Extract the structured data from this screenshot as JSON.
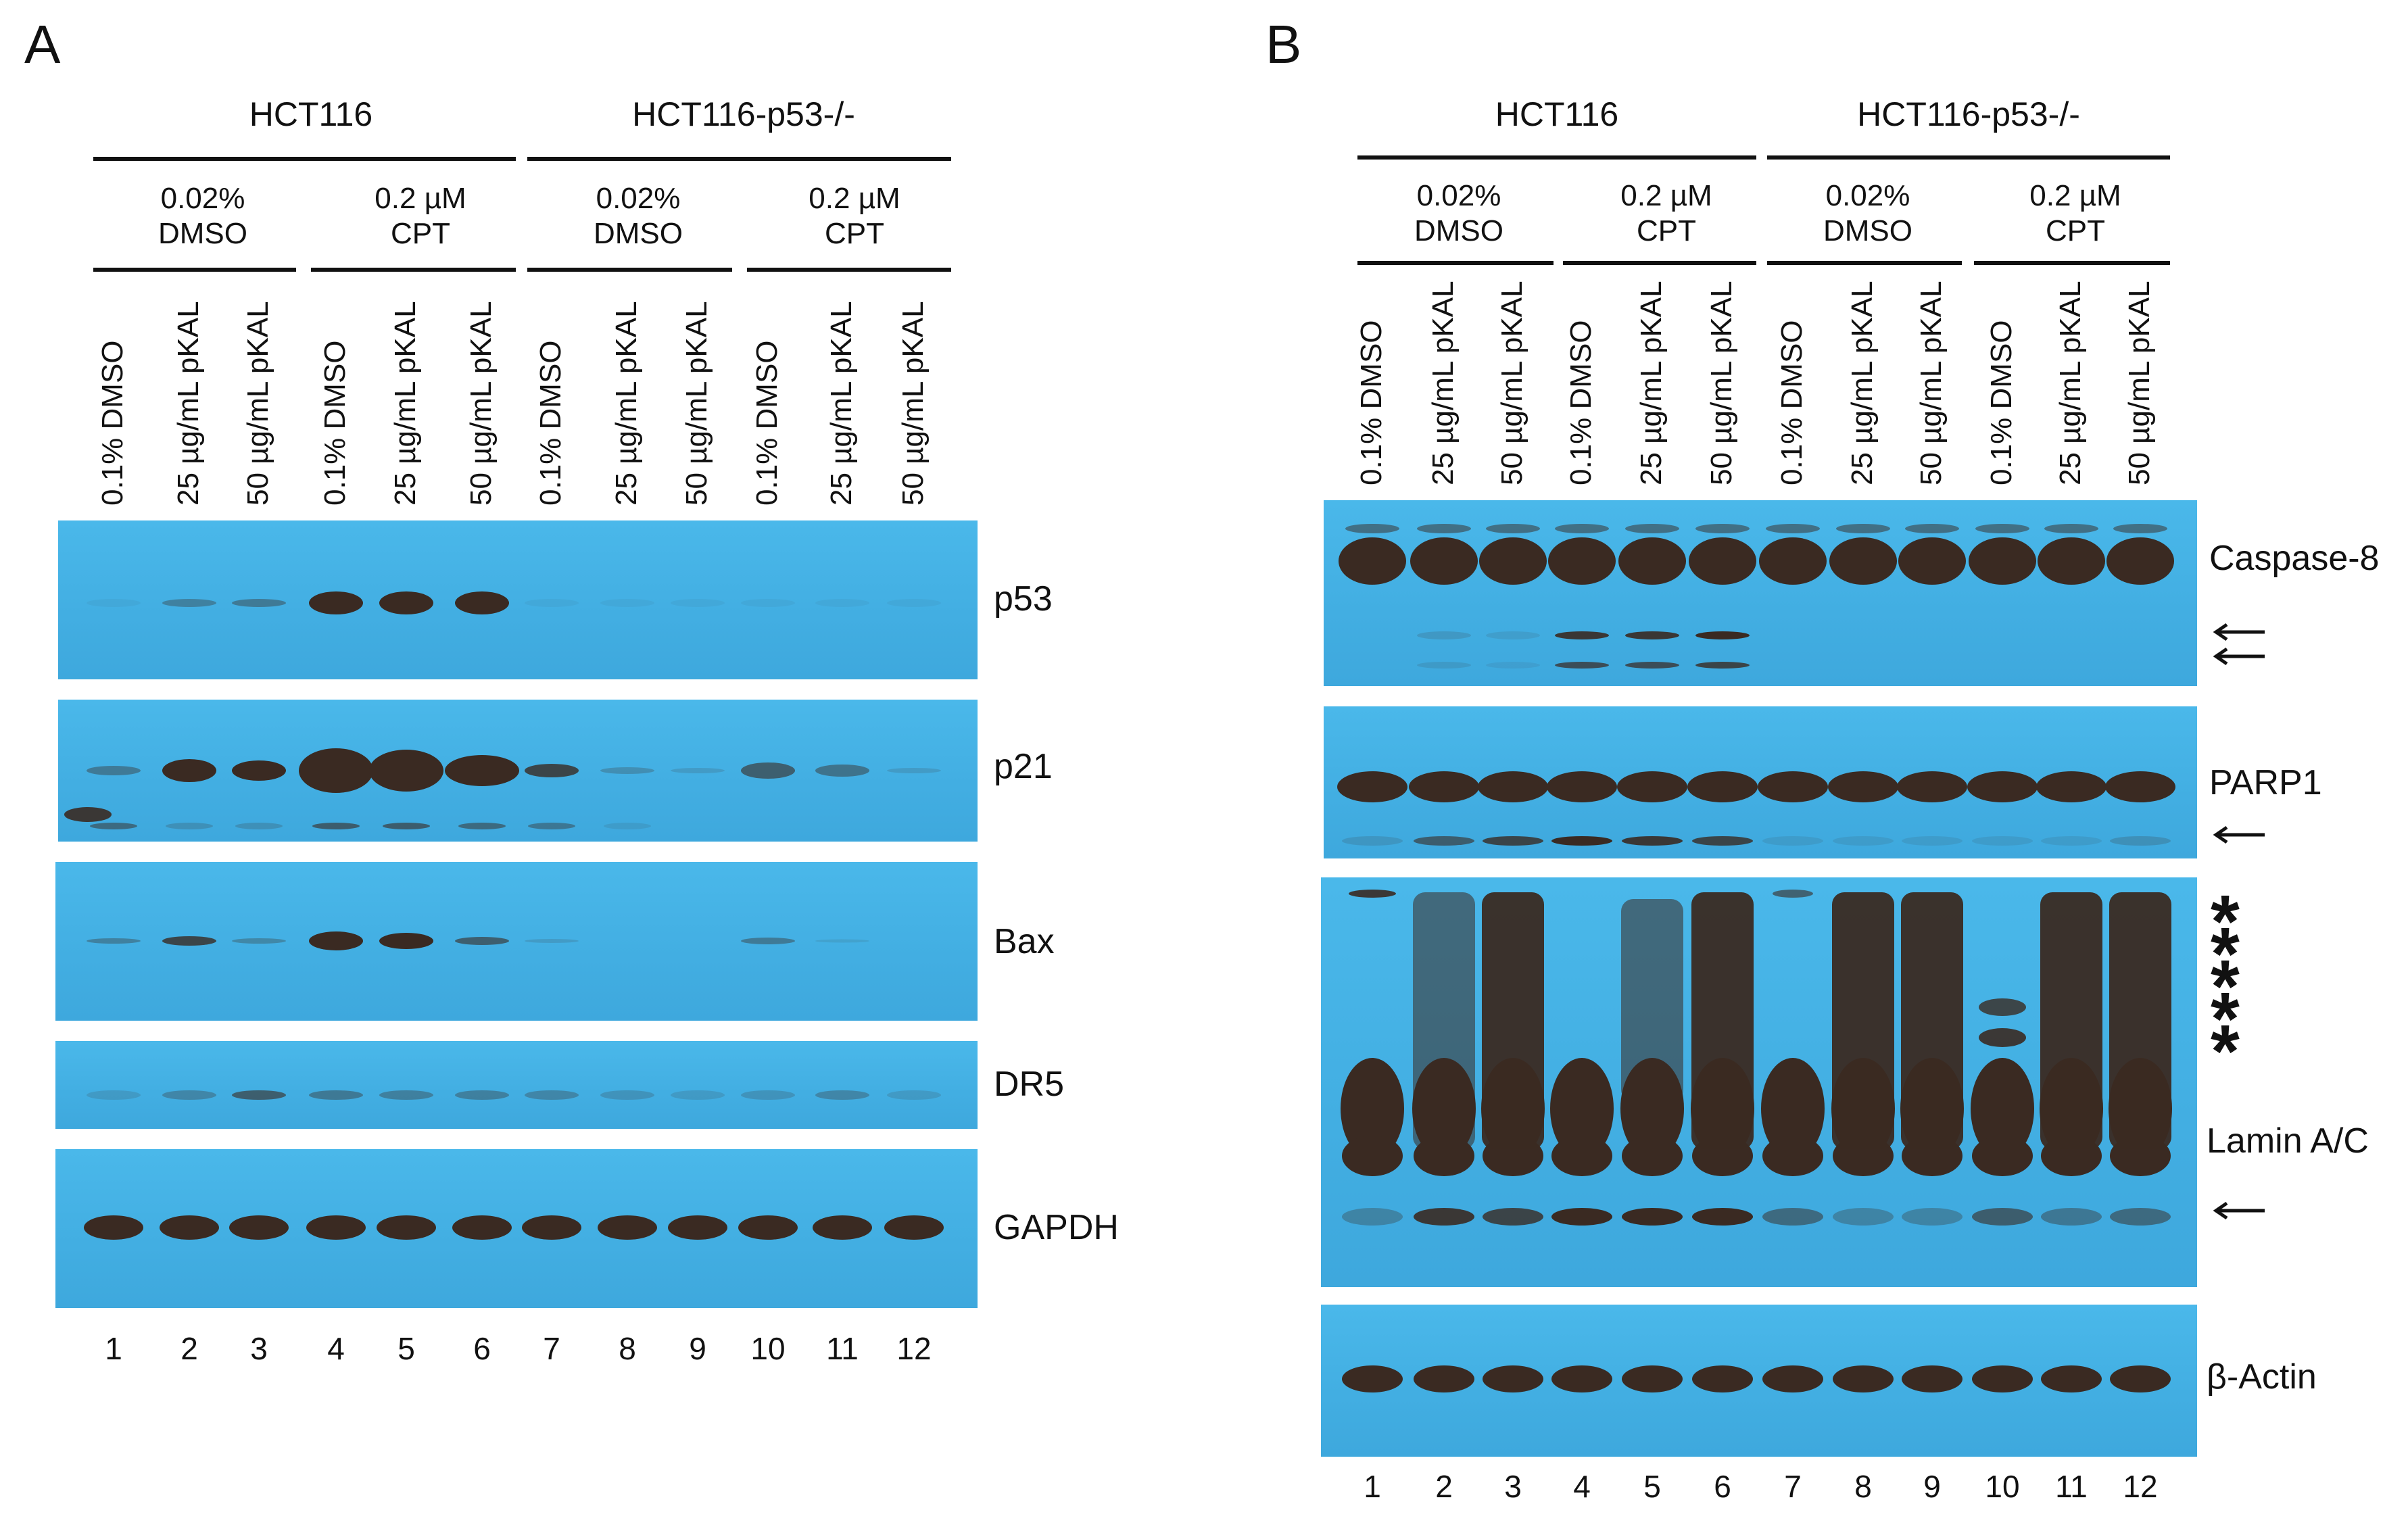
{
  "panels": [
    {
      "letter": "A",
      "cells": [
        "HCT116",
        "HCT116-p53-/-"
      ],
      "conditions": [
        [
          "0.02%",
          "DMSO"
        ],
        [
          "0.2 µM",
          "CPT"
        ],
        [
          "0.02%",
          "DMSO"
        ],
        [
          "0.2 µM",
          "CPT"
        ]
      ],
      "lane_treatments": [
        "0.1% DMSO",
        "25 µg/mL pKAL",
        "50 µg/mL pKAL",
        "0.1% DMSO",
        "25 µg/mL pKAL",
        "50 µg/mL pKAL",
        "0.1% DMSO",
        "25 µg/mL pKAL",
        "50 µg/mL pKAL",
        "0.1% DMSO",
        "25 µg/mL pKAL",
        "50 µg/mL pKAL"
      ],
      "lane_numbers": [
        "1",
        "2",
        "3",
        "4",
        "5",
        "6",
        "7",
        "8",
        "9",
        "10",
        "11",
        "12"
      ],
      "blots": [
        "p53",
        "p21",
        "Bax",
        "DR5",
        "GAPDH"
      ]
    },
    {
      "letter": "B",
      "cells": [
        "HCT116",
        "HCT116-p53-/-"
      ],
      "conditions": [
        [
          "0.02%",
          "DMSO"
        ],
        [
          "0.2 µM",
          "CPT"
        ],
        [
          "0.02%",
          "DMSO"
        ],
        [
          "0.2 µM",
          "CPT"
        ]
      ],
      "lane_treatments": [
        "0.1% DMSO",
        "25 µg/mL pKAL",
        "50 µg/mL pKAL",
        "0.1% DMSO",
        "25 µg/mL pKAL",
        "50 µg/mL pKAL",
        "0.1% DMSO",
        "25 µg/mL pKAL",
        "50 µg/mL pKAL",
        "0.1% DMSO",
        "25 µg/mL pKAL",
        "50 µg/mL pKAL"
      ],
      "lane_numbers": [
        "1",
        "2",
        "3",
        "4",
        "5",
        "6",
        "7",
        "8",
        "9",
        "10",
        "11",
        "12"
      ],
      "blots": [
        "Caspase-8",
        "PARP1",
        "Lamin A/C",
        "β-Actin"
      ],
      "asterisk": "*"
    }
  ]
}
